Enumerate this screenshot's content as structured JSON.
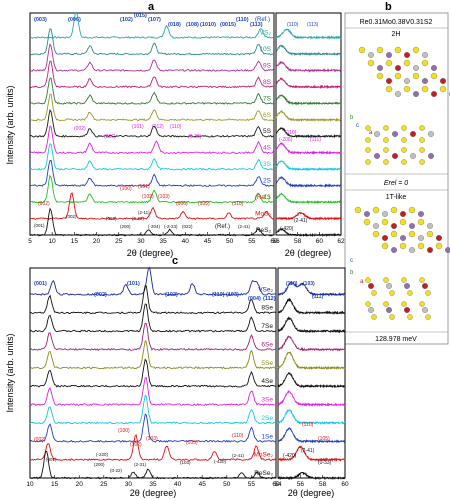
{
  "chart_data": [
    {
      "panel": "a",
      "type": "line",
      "xlabel": "2θ (degree)",
      "ylabel": "Intensity (arb. units)",
      "xlim": [
        5,
        60
      ],
      "xticks": [
        "5",
        "10",
        "15",
        "20",
        "25",
        "30",
        "35",
        "40",
        "45",
        "50",
        "55",
        "60"
      ],
      "series": [
        {
          "name": "VS2",
          "label": "VS₂",
          "color": "#2aa7a7",
          "peaks": [
            {
              "x": 15.4,
              "h": 1.0
            },
            {
              "x": 35.8,
              "h": 0.45
            },
            {
              "x": 57.0,
              "h": 0.35
            }
          ]
        },
        {
          "name": "10S",
          "color": "#2e8b8b",
          "peaks": [
            {
              "x": 9.6,
              "h": 1.0
            },
            {
              "x": 18.5,
              "h": 0.3
            },
            {
              "x": 33.0,
              "h": 0.4
            },
            {
              "x": 56.5,
              "h": 0.35
            }
          ]
        },
        {
          "name": "9S",
          "color": "#b0309a",
          "peaks": [
            {
              "x": 9.6,
              "h": 1.0
            },
            {
              "x": 18.5,
              "h": 0.3
            },
            {
              "x": 33.0,
              "h": 0.4
            },
            {
              "x": 56.5,
              "h": 0.35
            }
          ]
        },
        {
          "name": "8S",
          "color": "#c01f7a",
          "peaks": [
            {
              "x": 9.6,
              "h": 1.0
            },
            {
              "x": 18.5,
              "h": 0.3
            },
            {
              "x": 33.0,
              "h": 0.4
            },
            {
              "x": 56.5,
              "h": 0.35
            }
          ]
        },
        {
          "name": "7S",
          "color": "#2e7d32",
          "peaks": [
            {
              "x": 9.6,
              "h": 1.0
            },
            {
              "x": 18.5,
              "h": 0.3
            },
            {
              "x": 33.0,
              "h": 0.4
            },
            {
              "x": 56.5,
              "h": 0.35
            }
          ]
        },
        {
          "name": "6S",
          "color": "#9a9a2a",
          "peaks": [
            {
              "x": 9.6,
              "h": 1.0
            },
            {
              "x": 18.5,
              "h": 0.3
            },
            {
              "x": 33.0,
              "h": 0.4
            },
            {
              "x": 56.5,
              "h": 0.35
            }
          ]
        },
        {
          "name": "5S",
          "color": "#1a1a1a",
          "peaks": [
            {
              "x": 9.6,
              "h": 1.0
            },
            {
              "x": 18.5,
              "h": 0.3
            },
            {
              "x": 33.0,
              "h": 0.4
            },
            {
              "x": 56.5,
              "h": 0.35
            }
          ]
        },
        {
          "name": "4S",
          "color": "#e020e0",
          "peaks": [
            {
              "x": 9.6,
              "h": 1.0
            },
            {
              "x": 18.5,
              "h": 0.35
            },
            {
              "x": 33.5,
              "h": 0.45
            },
            {
              "x": 56.5,
              "h": 0.4
            }
          ]
        },
        {
          "name": "3S",
          "color": "#16c8e0",
          "peaks": [
            {
              "x": 9.6,
              "h": 1.0
            },
            {
              "x": 18.5,
              "h": 0.3
            },
            {
              "x": 33.0,
              "h": 0.4
            },
            {
              "x": 56.5,
              "h": 0.35
            }
          ]
        },
        {
          "name": "2S",
          "color": "#1f3fbf",
          "peaks": [
            {
              "x": 9.6,
              "h": 1.0
            },
            {
              "x": 18.5,
              "h": 0.3
            },
            {
              "x": 33.0,
              "h": 0.4
            },
            {
              "x": 56.5,
              "h": 0.35
            }
          ]
        },
        {
          "name": "1S",
          "color": "#22c022",
          "peaks": [
            {
              "x": 9.6,
              "h": 1.0
            },
            {
              "x": 18.5,
              "h": 0.3
            },
            {
              "x": 33.0,
              "h": 0.45
            },
            {
              "x": 56.5,
              "h": 0.35
            }
          ]
        },
        {
          "name": "MoS2",
          "label": "MoS₂",
          "color": "#e01010",
          "peaks": [
            {
              "x": 14.4,
              "h": 1.0
            },
            {
              "x": 32.7,
              "h": 0.4
            },
            {
              "x": 39.5,
              "h": 0.25
            },
            {
              "x": 49.8,
              "h": 0.2
            },
            {
              "x": 58.3,
              "h": 0.25
            }
          ]
        },
        {
          "name": "ReS2",
          "label": "ReS₂",
          "color": "#111111",
          "peaks": [
            {
              "x": 9.6,
              "h": 1.0
            },
            {
              "x": 31.7,
              "h": 0.2
            },
            {
              "x": 36.5,
              "h": 0.2
            },
            {
              "x": 56.5,
              "h": 0.25
            }
          ]
        }
      ],
      "ref_labels": [
        "(Ref.)",
        "(Ref.)",
        "(Ref.)"
      ],
      "annotations_top": [
        "(003)",
        "(006)",
        "(102)",
        "(015)",
        "(107)",
        "(018)",
        "(108)",
        "(1010)",
        "(0015)",
        "(110)",
        "(113)"
      ],
      "annotations_4S": [
        "(002)",
        "(006)",
        "(101)",
        "(012)",
        "(110)",
        "(0-33)"
      ],
      "annotations_MoS2": [
        "(002)",
        "(100)",
        "(101)",
        "(102)",
        "(103)",
        "(006)",
        "(105)",
        "(110)"
      ],
      "annotations_ReS2": [
        "(001)",
        "(002)",
        "(003)",
        "(200)",
        "(0-22)",
        "(2-11)",
        "(-204)",
        "(-2-23)",
        "(022)",
        "(2-41)"
      ]
    },
    {
      "panel": "a-inset",
      "type": "line",
      "xlabel": "2θ (degree)",
      "xlim": [
        56,
        62
      ],
      "xticks": [
        "56",
        "58",
        "60",
        "62"
      ],
      "annotations": [
        "(110)",
        "(113)",
        "(110)",
        "(-206)",
        "(111)",
        "(2-41)",
        "(-420)"
      ]
    },
    {
      "panel": "c",
      "type": "line",
      "xlabel": "2θ (degree)",
      "ylabel": "Intensity (arb. units)",
      "xlim": [
        10,
        60
      ],
      "xticks": [
        "10",
        "15",
        "20",
        "25",
        "30",
        "35",
        "40",
        "45",
        "50",
        "55",
        "60"
      ],
      "series": [
        {
          "name": "VSe2",
          "label": "VSe₂",
          "color": "#1a2a9a",
          "peaks": [
            {
              "x": 14.7,
              "h": 0.5
            },
            {
              "x": 29.5,
              "h": 0.35
            },
            {
              "x": 34.2,
              "h": 1.0
            },
            {
              "x": 43.0,
              "h": 0.4
            },
            {
              "x": 55.2,
              "h": 0.45
            },
            {
              "x": 56.2,
              "h": 0.4
            }
          ]
        },
        {
          "name": "8Se",
          "color": "#111111",
          "peaks": [
            {
              "x": 14.0,
              "h": 0.6
            },
            {
              "x": 33.5,
              "h": 1.0
            },
            {
              "x": 55.0,
              "h": 0.5
            }
          ]
        },
        {
          "name": "7Se",
          "color": "#111111",
          "peaks": [
            {
              "x": 14.0,
              "h": 0.6
            },
            {
              "x": 33.5,
              "h": 1.0
            },
            {
              "x": 55.0,
              "h": 0.5
            }
          ]
        },
        {
          "name": "6Se",
          "color": "#a02070",
          "peaks": [
            {
              "x": 14.0,
              "h": 0.6
            },
            {
              "x": 33.5,
              "h": 1.0
            },
            {
              "x": 55.0,
              "h": 0.5
            }
          ]
        },
        {
          "name": "5Se",
          "color": "#8c8c20",
          "peaks": [
            {
              "x": 14.0,
              "h": 0.6
            },
            {
              "x": 33.5,
              "h": 1.0
            },
            {
              "x": 55.0,
              "h": 0.6
            }
          ]
        },
        {
          "name": "4Se",
          "color": "#111111",
          "peaks": [
            {
              "x": 14.0,
              "h": 0.6
            },
            {
              "x": 33.5,
              "h": 1.0
            },
            {
              "x": 55.0,
              "h": 0.5
            }
          ]
        },
        {
          "name": "3Se",
          "color": "#e020e0",
          "peaks": [
            {
              "x": 14.0,
              "h": 0.6
            },
            {
              "x": 33.5,
              "h": 1.0
            },
            {
              "x": 55.0,
              "h": 0.5
            }
          ]
        },
        {
          "name": "2Se",
          "color": "#16c8e0",
          "peaks": [
            {
              "x": 14.0,
              "h": 0.6
            },
            {
              "x": 33.5,
              "h": 1.0
            },
            {
              "x": 55.0,
              "h": 0.5
            }
          ]
        },
        {
          "name": "1Se",
          "color": "#1f3fbf",
          "peaks": [
            {
              "x": 14.0,
              "h": 0.6
            },
            {
              "x": 33.5,
              "h": 1.0
            },
            {
              "x": 55.0,
              "h": 0.5
            }
          ]
        },
        {
          "name": "MoSe2",
          "label": "MoSe₂",
          "color": "#e01010",
          "peaks": [
            {
              "x": 13.7,
              "h": 0.6
            },
            {
              "x": 31.5,
              "h": 0.9
            },
            {
              "x": 37.8,
              "h": 0.5
            },
            {
              "x": 47.5,
              "h": 0.3
            },
            {
              "x": 56.0,
              "h": 0.5
            }
          ]
        },
        {
          "name": "ReSe2",
          "label": "ReSe₂",
          "color": "#111111",
          "peaks": [
            {
              "x": 13.3,
              "h": 1.0
            },
            {
              "x": 31.0,
              "h": 0.2
            },
            {
              "x": 34.0,
              "h": 0.3
            },
            {
              "x": 53.0,
              "h": 0.2
            },
            {
              "x": 56.2,
              "h": 0.2
            }
          ]
        }
      ],
      "annotations_VSe2": [
        "(001)",
        "(002)",
        "(101)",
        "(102)",
        "(110)",
        "(103)",
        "(004)",
        "(112)"
      ],
      "annotations_MoSe2": [
        "(002)",
        "(100)",
        "(102)",
        "(103)",
        "(105)",
        "(110)"
      ],
      "annotations_ReSe2": [
        "(001)",
        "(-220)",
        "(200)",
        "(0-22)",
        "(2-31)",
        "(103)",
        "(-420)",
        "(2-41)"
      ]
    },
    {
      "panel": "c-inset",
      "type": "line",
      "xlabel": "2θ (degree)",
      "xlim": [
        54,
        60
      ],
      "xticks": [
        "54",
        "56",
        "58",
        "60"
      ],
      "annotations": [
        "(110)",
        "(103)",
        "(111)",
        "(110)",
        "(105)",
        "(-420)",
        "(2-41)",
        "(0-33)"
      ]
    }
  ],
  "panel_letters": {
    "a": "a",
    "b": "b",
    "c": "c"
  },
  "panel_b": {
    "title": "Re0.31Mo0.38V0.31S2",
    "phase1": "2H",
    "energy1": "Erel = 0",
    "phase2": "1T-like",
    "energy2": "128.978 meV",
    "axes1": [
      "b",
      "c",
      "a"
    ],
    "axes2": [
      "c",
      "b",
      "a"
    ],
    "colors": {
      "s": "#f0e020",
      "re": "#c0c0c0",
      "mo": "#9070b0",
      "v": "#c02020"
    }
  }
}
